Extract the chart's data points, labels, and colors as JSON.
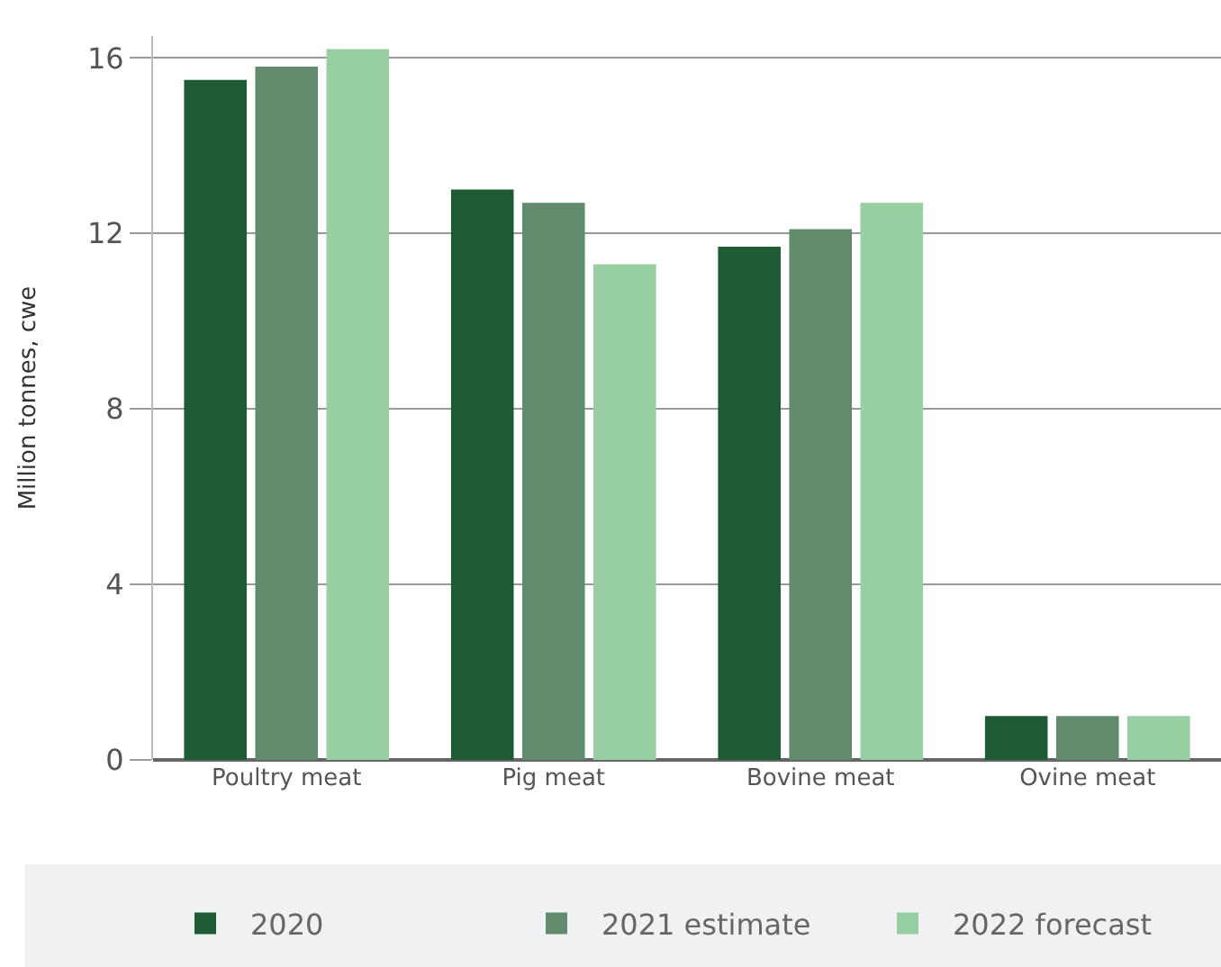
{
  "chart_data": {
    "type": "bar",
    "ylabel": "Million tonnes, cwe",
    "categories": [
      "Poultry meat",
      "Pig meat",
      "Bovine meat",
      "Ovine meat"
    ],
    "series": [
      {
        "name": "2020",
        "color": "#1e5b34",
        "values": [
          15.5,
          13.0,
          11.7,
          1.0
        ]
      },
      {
        "name": "2021 estimate",
        "color": "#628b6e",
        "values": [
          15.8,
          12.7,
          12.1,
          1.0
        ]
      },
      {
        "name": "2022 forecast",
        "color": "#97cfa3",
        "values": [
          16.2,
          11.3,
          12.7,
          1.0
        ]
      }
    ],
    "ylim": [
      0,
      16.5
    ],
    "yticks": [
      0,
      4,
      8,
      12,
      16
    ],
    "grid": "y",
    "legend": "bottom"
  }
}
